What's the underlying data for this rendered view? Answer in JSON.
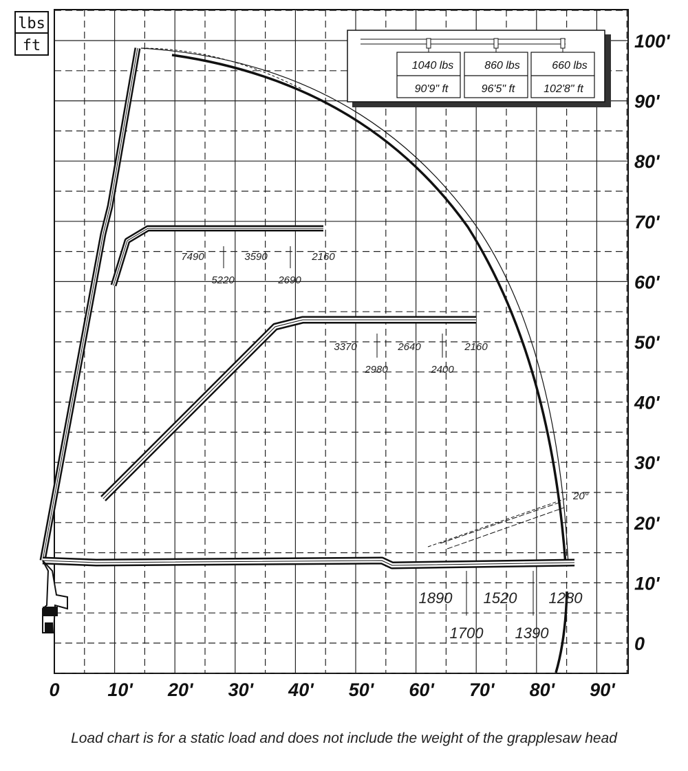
{
  "units": {
    "top": "lbs",
    "bottom": "ft"
  },
  "x_axis_labels": [
    "0",
    "10'",
    "20'",
    "30'",
    "40'",
    "50'",
    "60'",
    "70'",
    "80'",
    "90'"
  ],
  "y_axis_labels": [
    "0",
    "10'",
    "20'",
    "30'",
    "40'",
    "50'",
    "60'",
    "70'",
    "80'",
    "90'",
    "100'"
  ],
  "legend": {
    "loads": [
      "1040 lbs",
      "860 lbs",
      "660 lbs"
    ],
    "reaches": [
      "90'9\" ft",
      "96'5\" ft",
      "102'8\" ft"
    ]
  },
  "boom_loads": {
    "upper": [
      "7490",
      "5220",
      "3590",
      "2690",
      "2160"
    ],
    "middle": [
      "3370",
      "2980",
      "2640",
      "2400",
      "2160"
    ],
    "lower": [
      "1890",
      "1700",
      "1520",
      "1390",
      "1280"
    ]
  },
  "angle_label": "20°",
  "caption": "Load chart is for a static load and does not include the weight of the grapplesaw head"
}
